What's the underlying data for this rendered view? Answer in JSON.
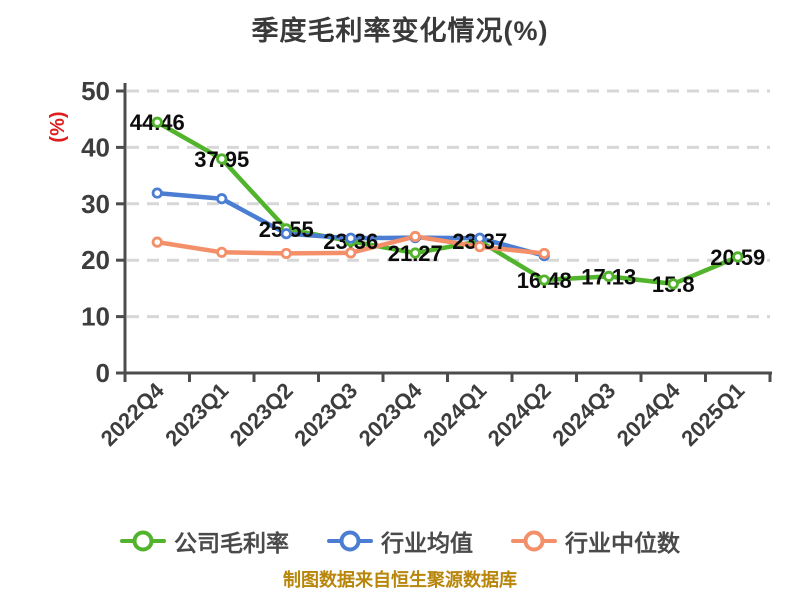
{
  "chart": {
    "source_note": "制图数据来自恒生聚源数据库"
  },
  "chart_data": {
    "type": "line",
    "title": "季度毛利率变化情况(%)",
    "ylabel": "(%)",
    "xlabel": "",
    "categories": [
      "2022Q4",
      "2023Q1",
      "2023Q2",
      "2023Q3",
      "2023Q4",
      "2024Q1",
      "2024Q2",
      "2024Q3",
      "2024Q4",
      "2025Q1"
    ],
    "series": [
      {
        "name": "公司毛利率",
        "color": "#52b42c",
        "labeled": true,
        "values": [
          44.46,
          37.95,
          25.55,
          23.36,
          21.27,
          23.37,
          16.48,
          17.13,
          15.8,
          20.59
        ]
      },
      {
        "name": "行业均值",
        "color": "#4b7ed3",
        "labeled": false,
        "estimated": true,
        "values": [
          31.9,
          30.9,
          24.7,
          23.9,
          24.0,
          23.9,
          20.8,
          null,
          null,
          null
        ]
      },
      {
        "name": "行业中位数",
        "color": "#f39069",
        "labeled": false,
        "estimated": true,
        "values": [
          23.2,
          21.4,
          21.2,
          21.3,
          24.2,
          22.4,
          21.2,
          null,
          null,
          null
        ]
      }
    ],
    "ylim": [
      0,
      50
    ],
    "yticks": [
      0,
      10,
      20,
      30,
      40,
      50
    ],
    "grid": "horizontal dashed",
    "legend_position": "bottom"
  },
  "colors": {
    "background": "#ffffff",
    "title": "#3a3a3a",
    "axis": "#4c4c4c",
    "grid": "#d7d7d7",
    "tick_label": "#3d3d3d",
    "data_label": "#0c0c0c",
    "y_axis_name": "#de1e1e",
    "source_note": "#b8860b",
    "marker_fill": "#ffffff"
  }
}
